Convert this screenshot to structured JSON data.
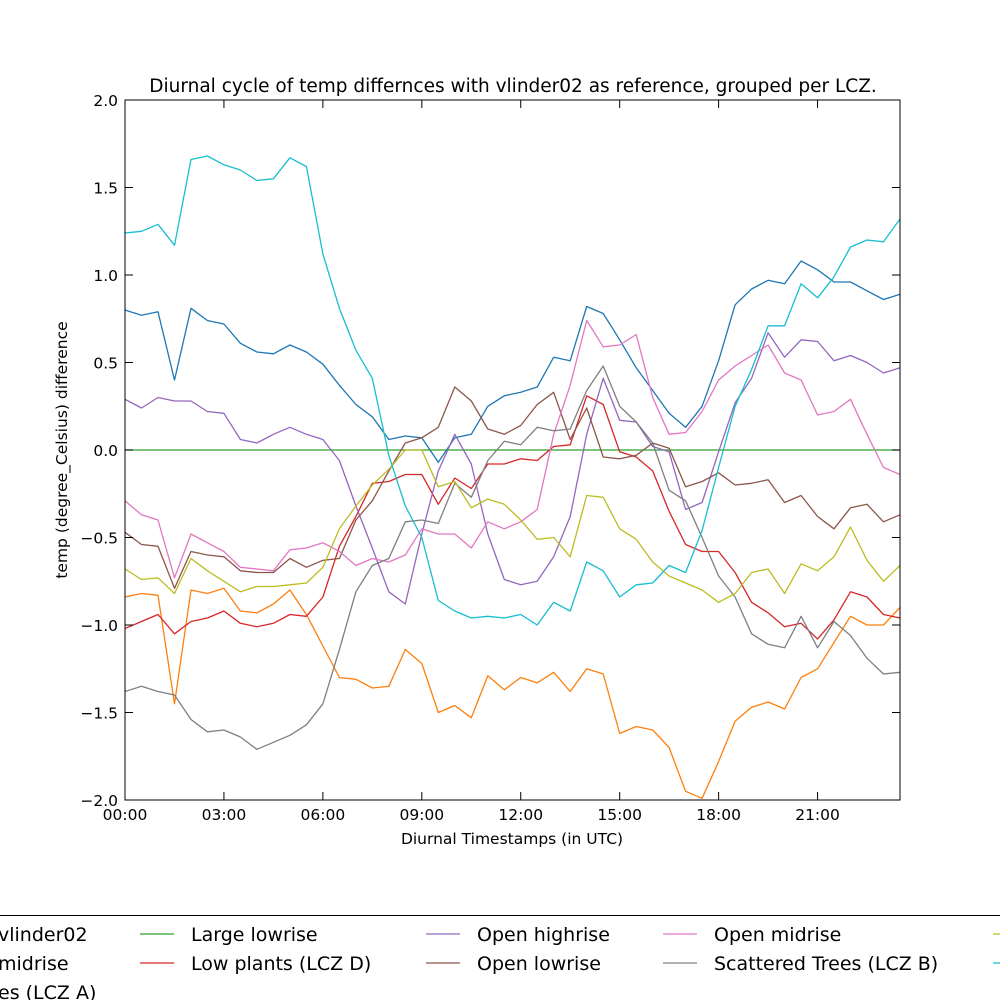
{
  "chart_data": {
    "type": "line",
    "title": "Diurnal cycle of temp differnces with vlinder02 as reference, grouped per LCZ.",
    "xlabel": "Diurnal Timestamps (in UTC)",
    "ylabel": "temp (degree_Celsius) difference",
    "xlim": [
      "00:00",
      "23:30"
    ],
    "ylim": [
      -2.0,
      2.0
    ],
    "x_ticks": [
      "00:00",
      "03:00",
      "06:00",
      "09:00",
      "12:00",
      "15:00",
      "18:00",
      "21:00"
    ],
    "y_ticks": [
      "2.0",
      "1.5",
      "1.0",
      "0.5",
      "0.0",
      "−0.5",
      "−1.0",
      "−1.5",
      "−2.0"
    ],
    "grid": false,
    "legend_placement": "below",
    "legend_labels": {
      "vlinder02": "vlinder02",
      "compact_midrise": "midrise",
      "dense_trees": "es (LCZ A)",
      "large_lowrise": "Large lowrise",
      "low_plants": "Low plants (LCZ D)",
      "open_highrise": "Open highrise",
      "open_lowrise": "Open lowrise",
      "open_midrise": "Open midrise",
      "scattered_trees": "Scattered Trees (LCZ B)"
    },
    "x": [
      "00:00",
      "00:30",
      "01:00",
      "01:30",
      "02:00",
      "02:30",
      "03:00",
      "03:30",
      "04:00",
      "04:30",
      "05:00",
      "05:30",
      "06:00",
      "06:30",
      "07:00",
      "07:30",
      "08:00",
      "08:30",
      "09:00",
      "09:30",
      "10:00",
      "10:30",
      "11:00",
      "11:30",
      "12:00",
      "12:30",
      "13:00",
      "13:30",
      "14:00",
      "14:30",
      "15:00",
      "15:30",
      "16:00",
      "16:30",
      "17:00",
      "17:30",
      "18:00",
      "18:30",
      "19:00",
      "19:30",
      "20:00",
      "20:30",
      "21:00",
      "21:30",
      "22:00",
      "22:30",
      "23:00",
      "23:30"
    ],
    "series": [
      {
        "key": "dense_trees",
        "color": "#1f77b4",
        "values": [
          0.8,
          0.77,
          0.79,
          0.4,
          0.81,
          0.74,
          0.72,
          0.61,
          0.56,
          0.55,
          0.6,
          0.56,
          0.49,
          0.37,
          0.26,
          0.19,
          0.06,
          0.08,
          0.07,
          -0.07,
          0.07,
          0.09,
          0.25,
          0.31,
          0.33,
          0.36,
          0.53,
          0.51,
          0.82,
          0.78,
          0.63,
          0.47,
          0.34,
          0.21,
          0.13,
          0.25,
          0.51,
          0.83,
          0.92,
          0.97,
          0.95,
          1.08,
          1.03,
          0.96,
          0.96,
          0.91,
          0.86,
          0.89
        ]
      },
      {
        "key": "vlinder02",
        "color": "#ff7f0e",
        "values": [
          -0.84,
          -0.82,
          -0.83,
          -1.45,
          -0.8,
          -0.82,
          -0.79,
          -0.92,
          -0.93,
          -0.88,
          -0.8,
          -0.94,
          -1.12,
          -1.3,
          -1.31,
          -1.36,
          -1.35,
          -1.14,
          -1.22,
          -1.5,
          -1.46,
          -1.53,
          -1.29,
          -1.37,
          -1.3,
          -1.33,
          -1.27,
          -1.38,
          -1.25,
          -1.28,
          -1.62,
          -1.58,
          -1.6,
          -1.7,
          -1.95,
          -1.99,
          -1.78,
          -1.55,
          -1.47,
          -1.44,
          -1.48,
          -1.3,
          -1.25,
          -1.1,
          -0.95,
          -1.0,
          -1.0,
          -0.9
        ]
      },
      {
        "key": "large_lowrise",
        "color": "#2ca02c",
        "values": [
          0.0,
          0.0,
          0.0,
          0.0,
          0.0,
          0.0,
          0.0,
          0.0,
          0.0,
          0.0,
          0.0,
          0.0,
          0.0,
          0.0,
          0.0,
          0.0,
          0.0,
          0.0,
          0.0,
          0.0,
          0.0,
          0.0,
          0.0,
          0.0,
          0.0,
          0.0,
          0.0,
          0.0,
          0.0,
          0.0,
          0.0,
          0.0,
          0.0,
          0.0,
          0.0,
          0.0,
          0.0,
          0.0,
          0.0,
          0.0,
          0.0,
          0.0,
          0.0,
          0.0,
          0.0,
          0.0,
          0.0,
          0.0
        ]
      },
      {
        "key": "low_plants",
        "color": "#d62728",
        "values": [
          -1.02,
          -0.98,
          -0.94,
          -1.05,
          -0.98,
          -0.96,
          -0.92,
          -0.99,
          -1.01,
          -0.99,
          -0.94,
          -0.95,
          -0.84,
          -0.55,
          -0.38,
          -0.19,
          -0.18,
          -0.14,
          -0.14,
          -0.31,
          -0.16,
          -0.22,
          -0.08,
          -0.08,
          -0.05,
          -0.06,
          0.02,
          0.03,
          0.31,
          0.26,
          -0.01,
          -0.04,
          -0.12,
          -0.35,
          -0.54,
          -0.58,
          -0.58,
          -0.7,
          -0.87,
          -0.93,
          -1.01,
          -0.99,
          -1.08,
          -0.97,
          -0.81,
          -0.84,
          -0.94,
          -0.96
        ]
      },
      {
        "key": "open_highrise",
        "color": "#9467bd",
        "values": [
          0.29,
          0.24,
          0.3,
          0.28,
          0.28,
          0.22,
          0.21,
          0.06,
          0.04,
          0.09,
          0.13,
          0.09,
          0.06,
          -0.06,
          -0.32,
          -0.56,
          -0.81,
          -0.88,
          -0.48,
          -0.12,
          0.09,
          -0.08,
          -0.48,
          -0.74,
          -0.77,
          -0.75,
          -0.61,
          -0.38,
          0.09,
          0.41,
          0.17,
          0.16,
          0.02,
          -0.01,
          -0.34,
          -0.3,
          -0.01,
          0.27,
          0.41,
          0.67,
          0.53,
          0.63,
          0.62,
          0.51,
          0.54,
          0.5,
          0.44,
          0.47
        ]
      },
      {
        "key": "open_lowrise",
        "color": "#8c564b",
        "values": [
          -0.47,
          -0.54,
          -0.55,
          -0.79,
          -0.58,
          -0.6,
          -0.61,
          -0.69,
          -0.7,
          -0.7,
          -0.62,
          -0.67,
          -0.63,
          -0.62,
          -0.4,
          -0.29,
          -0.12,
          0.04,
          0.07,
          0.13,
          0.36,
          0.28,
          0.12,
          0.09,
          0.14,
          0.26,
          0.33,
          0.06,
          0.24,
          -0.04,
          -0.05,
          -0.03,
          0.04,
          0.01,
          -0.21,
          -0.18,
          -0.13,
          -0.2,
          -0.19,
          -0.17,
          -0.3,
          -0.26,
          -0.38,
          -0.45,
          -0.33,
          -0.31,
          -0.41,
          -0.37
        ]
      },
      {
        "key": "open_midrise",
        "color": "#e377c2",
        "values": [
          -0.29,
          -0.37,
          -0.4,
          -0.73,
          -0.48,
          -0.53,
          -0.58,
          -0.67,
          -0.68,
          -0.69,
          -0.57,
          -0.56,
          -0.53,
          -0.58,
          -0.66,
          -0.62,
          -0.64,
          -0.6,
          -0.45,
          -0.48,
          -0.48,
          -0.56,
          -0.41,
          -0.45,
          -0.41,
          -0.34,
          0.09,
          0.37,
          0.74,
          0.59,
          0.6,
          0.66,
          0.3,
          0.09,
          0.1,
          0.22,
          0.4,
          0.48,
          0.54,
          0.6,
          0.44,
          0.4,
          0.2,
          0.22,
          0.29,
          0.09,
          -0.1,
          -0.14
        ]
      },
      {
        "key": "scattered_trees",
        "color": "#7f7f7f",
        "values": [
          -1.38,
          -1.35,
          -1.38,
          -1.4,
          -1.54,
          -1.61,
          -1.6,
          -1.64,
          -1.71,
          -1.67,
          -1.63,
          -1.57,
          -1.45,
          -1.14,
          -0.81,
          -0.66,
          -0.62,
          -0.41,
          -0.4,
          -0.42,
          -0.19,
          -0.27,
          -0.06,
          0.05,
          0.03,
          0.13,
          0.11,
          0.12,
          0.34,
          0.48,
          0.25,
          0.16,
          0.04,
          -0.23,
          -0.29,
          -0.5,
          -0.72,
          -0.84,
          -1.05,
          -1.11,
          -1.13,
          -0.95,
          -1.13,
          -0.98,
          -1.06,
          -1.19,
          -1.28,
          -1.27
        ]
      },
      {
        "key": "olive_series",
        "color": "#bcbd22",
        "values": [
          -0.68,
          -0.74,
          -0.73,
          -0.82,
          -0.62,
          -0.69,
          -0.75,
          -0.81,
          -0.78,
          -0.78,
          -0.77,
          -0.76,
          -0.67,
          -0.45,
          -0.32,
          -0.2,
          -0.11,
          0.0,
          0.0,
          -0.21,
          -0.18,
          -0.33,
          -0.28,
          -0.31,
          -0.4,
          -0.51,
          -0.5,
          -0.61,
          -0.26,
          -0.27,
          -0.45,
          -0.51,
          -0.64,
          -0.72,
          -0.76,
          -0.8,
          -0.87,
          -0.82,
          -0.7,
          -0.68,
          -0.82,
          -0.65,
          -0.69,
          -0.61,
          -0.44,
          -0.63,
          -0.75,
          -0.66
        ]
      },
      {
        "key": "cyan_series",
        "color": "#17becf",
        "values": [
          1.24,
          1.25,
          1.29,
          1.17,
          1.66,
          1.68,
          1.63,
          1.6,
          1.54,
          1.55,
          1.67,
          1.62,
          1.12,
          0.81,
          0.57,
          0.41,
          -0.03,
          -0.32,
          -0.5,
          -0.86,
          -0.92,
          -0.96,
          -0.95,
          -0.96,
          -0.94,
          -1.0,
          -0.87,
          -0.92,
          -0.64,
          -0.69,
          -0.84,
          -0.77,
          -0.76,
          -0.66,
          -0.7,
          -0.46,
          -0.1,
          0.25,
          0.46,
          0.71,
          0.71,
          0.95,
          0.87,
          0.99,
          1.16,
          1.2,
          1.19,
          1.32
        ]
      }
    ]
  }
}
